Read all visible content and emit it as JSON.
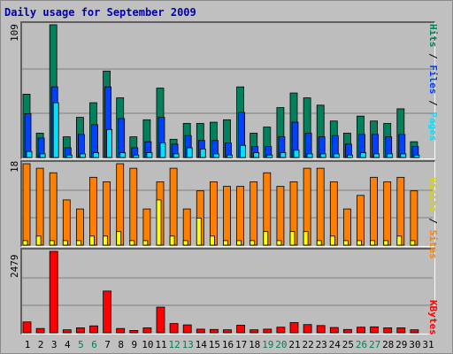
{
  "title": "Daily usage for September 2009",
  "chart_data": [
    {
      "type": "bar",
      "panel": "hits",
      "categories": [
        "1",
        "2",
        "3",
        "4",
        "5",
        "6",
        "7",
        "8",
        "9",
        "10",
        "11",
        "12",
        "13",
        "14",
        "15",
        "16",
        "17",
        "18",
        "19",
        "20",
        "21",
        "22",
        "23",
        "24",
        "25",
        "26",
        "27",
        "28",
        "29",
        "30",
        "31"
      ],
      "weekend_days": [
        "5",
        "6",
        "12",
        "13",
        "19",
        "20",
        "26",
        "27"
      ],
      "ymax_label": "109",
      "ylim": [
        0,
        109
      ],
      "series": [
        {
          "name": "Hits",
          "color": "#00805c",
          "values": [
            52,
            20,
            109,
            17,
            33,
            45,
            71,
            49,
            17,
            31,
            57,
            15,
            28,
            28,
            29,
            31,
            58,
            20,
            25,
            41,
            53,
            49,
            43,
            30,
            20,
            34,
            30,
            28,
            40,
            13,
            0
          ]
        },
        {
          "name": "Files",
          "color": "#0040ff",
          "values": [
            36,
            16,
            58,
            8,
            19,
            27,
            58,
            32,
            8,
            13,
            33,
            11,
            18,
            14,
            14,
            12,
            37,
            9,
            9,
            17,
            29,
            20,
            17,
            18,
            11,
            19,
            19,
            17,
            19,
            9,
            0
          ]
        },
        {
          "name": "Pages",
          "color": "#00e0ff",
          "values": [
            5,
            3,
            45,
            2,
            3,
            4,
            23,
            4,
            2,
            4,
            12,
            3,
            8,
            7,
            3,
            2,
            10,
            4,
            2,
            4,
            6,
            3,
            3,
            3,
            2,
            4,
            3,
            3,
            3,
            2,
            0
          ]
        }
      ],
      "legend": [
        "Pages",
        "Files",
        "Hits"
      ],
      "legend_colors": [
        "#00e0ff",
        "#0040ff",
        "#00805c"
      ]
    },
    {
      "type": "bar",
      "panel": "sites",
      "ymax_label": "18",
      "ylim": [
        0,
        18
      ],
      "series": [
        {
          "name": "Sites",
          "color": "#ff8000",
          "values": [
            18,
            17,
            16,
            10,
            8,
            15,
            14,
            18,
            17,
            8,
            14,
            17,
            8,
            12,
            14,
            13,
            13,
            14,
            16,
            13,
            14,
            17,
            17,
            14,
            8,
            11,
            15,
            14,
            15,
            12,
            0
          ]
        },
        {
          "name": "Visits",
          "color": "#ffff00",
          "values": [
            1,
            2,
            1,
            1,
            1,
            2,
            2,
            3,
            1,
            1,
            10,
            2,
            1,
            6,
            2,
            1,
            1,
            1,
            3,
            1,
            3,
            3,
            1,
            2,
            1,
            1,
            1,
            1,
            2,
            1,
            0
          ]
        }
      ],
      "legend": [
        "Sites",
        "Visits"
      ],
      "legend_colors": [
        "#ff8000",
        "#ffff00"
      ]
    },
    {
      "type": "bar",
      "panel": "kbytes",
      "ymax_label": "2479",
      "ylim": [
        0,
        2479
      ],
      "series": [
        {
          "name": "KBytes",
          "color": "#ff0000",
          "values": [
            330,
            130,
            2479,
            90,
            150,
            210,
            1270,
            130,
            70,
            150,
            780,
            280,
            240,
            110,
            100,
            90,
            230,
            90,
            110,
            170,
            310,
            250,
            220,
            160,
            100,
            170,
            180,
            150,
            150,
            90,
            0
          ]
        }
      ],
      "legend": [
        "KBytes"
      ],
      "legend_colors": [
        "#ff0000"
      ]
    }
  ]
}
